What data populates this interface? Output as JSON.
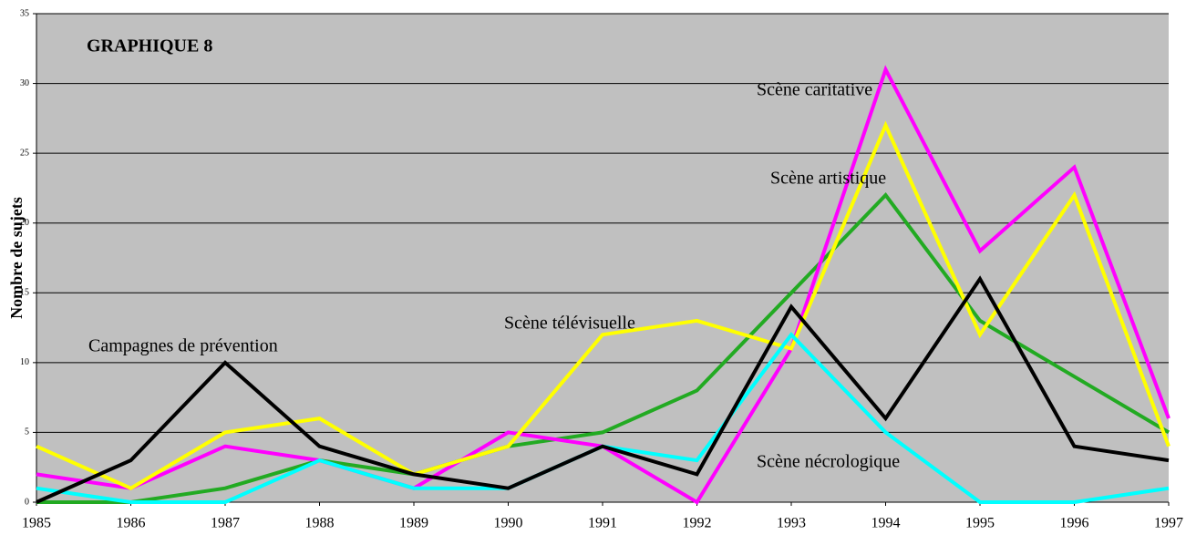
{
  "chart_data": {
    "type": "line",
    "title": "GRAPHIQUE 8",
    "y_label": "Nombre de sujets",
    "categories": [
      "1985",
      "1986",
      "1987",
      "1988",
      "1989",
      "1990",
      "1991",
      "1992",
      "1993",
      "1994",
      "1995",
      "1996",
      "1997"
    ],
    "series": [
      {
        "name": "Scène artistique",
        "color": "#22aa22",
        "values": [
          0,
          0,
          1,
          3,
          2,
          4,
          5,
          8,
          15,
          22,
          13,
          9,
          5
        ]
      },
      {
        "name": "Scène caritative",
        "color": "#ff00ff",
        "values": [
          2,
          1,
          4,
          3,
          1,
          5,
          4,
          0,
          11,
          31,
          18,
          24,
          6
        ]
      },
      {
        "name": "Scène télévisuelle",
        "color": "#ffff00",
        "values": [
          4,
          1,
          5,
          6,
          2,
          4,
          12,
          13,
          11,
          27,
          12,
          22,
          4
        ]
      },
      {
        "name": "Scène nécrologique",
        "color": "#00ffff",
        "values": [
          1,
          0,
          0,
          3,
          1,
          1,
          4,
          3,
          12,
          5,
          0,
          0,
          1
        ]
      },
      {
        "name": "Campagnes de prévention",
        "color": "#000000",
        "values": [
          0,
          3,
          10,
          4,
          2,
          1,
          4,
          2,
          14,
          6,
          16,
          4,
          3
        ]
      }
    ],
    "ylim": [
      0,
      35
    ],
    "yticks": [
      0,
      5,
      10,
      15,
      20,
      25,
      30,
      35
    ],
    "grid": true
  }
}
